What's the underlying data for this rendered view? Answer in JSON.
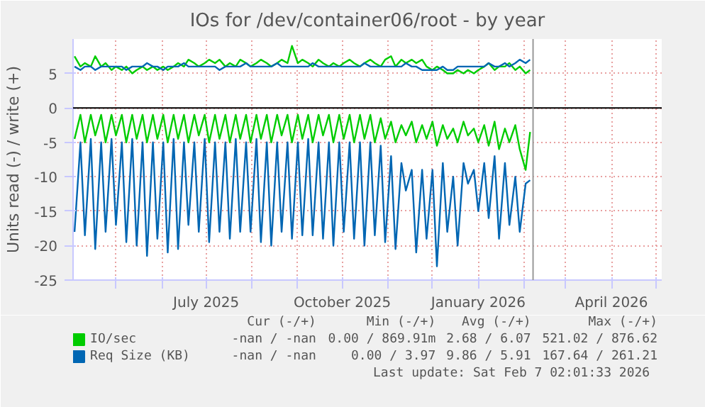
{
  "chart_data": {
    "type": "line",
    "title": "IOs for /dev/container06/root - by year",
    "ylabel": "Units read (-) / write (+)",
    "x": [
      "2025-04-03",
      "2025-04-07",
      "2025-04-10",
      "2025-04-14",
      "2025-04-17",
      "2025-04-21",
      "2025-04-24",
      "2025-04-28",
      "2025-05-01",
      "2025-05-05",
      "2025-05-08",
      "2025-05-12",
      "2025-05-15",
      "2025-05-19",
      "2025-05-22",
      "2025-05-26",
      "2025-05-29",
      "2025-06-02",
      "2025-06-05",
      "2025-06-09",
      "2025-06-12",
      "2025-06-16",
      "2025-06-19",
      "2025-06-23",
      "2025-06-26",
      "2025-06-30",
      "2025-07-03",
      "2025-07-07",
      "2025-07-10",
      "2025-07-14",
      "2025-07-17",
      "2025-07-21",
      "2025-07-24",
      "2025-07-28",
      "2025-07-31",
      "2025-08-04",
      "2025-08-07",
      "2025-08-11",
      "2025-08-14",
      "2025-08-18",
      "2025-08-21",
      "2025-08-25",
      "2025-08-28",
      "2025-09-01",
      "2025-09-04",
      "2025-09-08",
      "2025-09-11",
      "2025-09-15",
      "2025-09-18",
      "2025-09-22",
      "2025-09-25",
      "2025-09-29",
      "2025-10-02",
      "2025-10-06",
      "2025-10-09",
      "2025-10-13",
      "2025-10-16",
      "2025-10-20",
      "2025-10-23",
      "2025-10-27",
      "2025-10-30",
      "2025-11-03",
      "2025-11-06",
      "2025-11-10",
      "2025-11-13",
      "2025-11-17",
      "2025-11-20",
      "2025-11-24",
      "2025-11-27",
      "2025-12-01",
      "2025-12-04",
      "2025-12-08",
      "2025-12-11",
      "2025-12-15",
      "2025-12-18",
      "2025-12-22",
      "2025-12-25",
      "2025-12-29",
      "2026-01-01",
      "2026-01-05",
      "2026-01-08",
      "2026-01-12",
      "2026-01-15",
      "2026-01-19",
      "2026-01-22",
      "2026-01-26",
      "2026-01-29",
      "2026-02-02",
      "2026-02-05"
    ],
    "series": [
      {
        "name": "IO/sec",
        "color": "#00cc00",
        "values": [
          7.5,
          6,
          6.5,
          6,
          7.5,
          6,
          6.5,
          5.5,
          6,
          5.5,
          6,
          5,
          5.5,
          6,
          5.5,
          6,
          5.5,
          6,
          5.5,
          6,
          6.5,
          6,
          7,
          6.5,
          6,
          6.5,
          7,
          6.5,
          7,
          6,
          6.5,
          6,
          7,
          6.5,
          6,
          6.5,
          7,
          6.5,
          6,
          6.5,
          7,
          6.5,
          9,
          6.5,
          7,
          6.5,
          6,
          7,
          6.5,
          6,
          6.5,
          6,
          6.5,
          7,
          6.5,
          6,
          6.5,
          7,
          6.5,
          6,
          7,
          7.5,
          6,
          7,
          6.5,
          7,
          6.5,
          7,
          6,
          5.5,
          6,
          5.5,
          5,
          5,
          5.5,
          5,
          5.5,
          5,
          5.5,
          6,
          6.5,
          5.5,
          6,
          6,
          6.5,
          5.5,
          6,
          5,
          5.5
        ]
      },
      {
        "color": "#00cc00",
        "values": [
          -4.5,
          -1,
          -5,
          -1,
          -4,
          -1,
          -5,
          -1,
          -4,
          -1,
          -5,
          -1,
          -4.5,
          -1,
          -5,
          -1,
          -4.5,
          -1,
          -5,
          -1,
          -4.5,
          -1,
          -5,
          -1,
          -4,
          -1,
          -5,
          -1,
          -4.5,
          -1,
          -5,
          -1,
          -4.5,
          -1,
          -5,
          -1,
          -4.5,
          -1,
          -5,
          -1,
          -4,
          -1,
          -5,
          -1,
          -4.5,
          -1,
          -5,
          -1,
          -4,
          -1,
          -5,
          -1,
          -4.5,
          -1,
          -5,
          -1,
          -4.5,
          -1,
          -5,
          -1.5,
          -4.5,
          -2,
          -5,
          -2.5,
          -4,
          -2,
          -5,
          -2.5,
          -4.5,
          -2,
          -5.5,
          -2.5,
          -4.5,
          -3,
          -5,
          -2,
          -4,
          -3,
          -5,
          -2.5,
          -5.5,
          -2,
          -6,
          -3,
          -5,
          -2.5,
          -6,
          -9,
          -3.5
        ]
      },
      {
        "name": "Req Size (KB)",
        "color": "#0066b3",
        "values": [
          6,
          5.5,
          6,
          6,
          5.5,
          6,
          6,
          6,
          6,
          6,
          5.5,
          6,
          6,
          6,
          6.5,
          6,
          6,
          5.5,
          6,
          6,
          6,
          6.5,
          6,
          6,
          6,
          6,
          6,
          6,
          5.5,
          6,
          6,
          6,
          6,
          6.5,
          6,
          6,
          6,
          6,
          6,
          6.5,
          6,
          6,
          6,
          6,
          6,
          6,
          6.5,
          6,
          6,
          6,
          6,
          6,
          6,
          6,
          6,
          6,
          6.5,
          6,
          6,
          6,
          6,
          6,
          6,
          6,
          6.5,
          6,
          6,
          5.5,
          5.5,
          5.5,
          5.5,
          6,
          5.5,
          5.5,
          6,
          6,
          6,
          6,
          6,
          6,
          6.5,
          6,
          6,
          6.5,
          6,
          6.5,
          7,
          6.5,
          7
        ]
      },
      {
        "color": "#0066b3",
        "values": [
          -18,
          -5,
          -18.5,
          -4.5,
          -20.5,
          -5,
          -18,
          -4.5,
          -17,
          -5,
          -19.5,
          -4.5,
          -20,
          -5,
          -21.5,
          -5,
          -19,
          -5,
          -21,
          -4.5,
          -20.5,
          -5,
          -17,
          -5,
          -18,
          -4.5,
          -19.5,
          -5,
          -18,
          -5,
          -19,
          -4.5,
          -18,
          -5,
          -18,
          -4.5,
          -19.5,
          -5,
          -20,
          -5,
          -18,
          -5,
          -19,
          -5,
          -18.5,
          -4.5,
          -18.5,
          -5,
          -19,
          -5,
          -20,
          -5,
          -18,
          -5,
          -19,
          -5,
          -20,
          -5,
          -18.5,
          -5.5,
          -19.5,
          -7,
          -20.5,
          -8,
          -12,
          -9,
          -21,
          -9,
          -19,
          -9,
          -23,
          -8,
          -18,
          -10,
          -20,
          -8,
          -11,
          -9,
          -15,
          -8,
          -16,
          -7,
          -19,
          -8,
          -17,
          -10,
          -18,
          -11,
          -10.5
        ]
      }
    ],
    "xlim": [
      "2025-04-02",
      "2026-05-05"
    ],
    "xticks": [
      {
        "value": "2025-05-01",
        "label": null
      },
      {
        "value": "2025-06-01",
        "label": null
      },
      {
        "value": "2025-07-01",
        "label": "July 2025"
      },
      {
        "value": "2025-08-01",
        "label": null
      },
      {
        "value": "2025-09-01",
        "label": null
      },
      {
        "value": "2025-10-01",
        "label": "October 2025"
      },
      {
        "value": "2025-11-01",
        "label": null
      },
      {
        "value": "2025-12-01",
        "label": null
      },
      {
        "value": "2026-01-01",
        "label": "January 2026"
      },
      {
        "value": "2026-02-01",
        "label": null
      },
      {
        "value": "2026-03-01",
        "label": null
      },
      {
        "value": "2026-04-01",
        "label": "April 2026"
      },
      {
        "value": "2026-05-01",
        "label": null
      }
    ],
    "ylim": [
      -25,
      10
    ],
    "yticks": [
      -25,
      -20,
      -15,
      -10,
      -5,
      0,
      5
    ],
    "ref_lines": [
      {
        "axis": "y",
        "value": 0,
        "color": "#000000"
      },
      {
        "axis": "x",
        "value": "2026-02-07",
        "color": "#999999"
      }
    ],
    "grid": true,
    "legend": "bottom",
    "line_style": "solid",
    "annotations": [
      "Cur (-/+)",
      "Min (-/+)",
      "Avg (-/+)",
      "Max (-/+)",
      "-nan / -nan",
      "0.00 / 869.91m",
      "2.68 / 6.07",
      "521.02 / 876.62",
      "-nan / -nan",
      "0.00 / 3.97",
      "9.86 / 5.91",
      "167.64 / 261.21",
      "Last update: Sat Feb  7 02:01:33 2026"
    ]
  }
}
